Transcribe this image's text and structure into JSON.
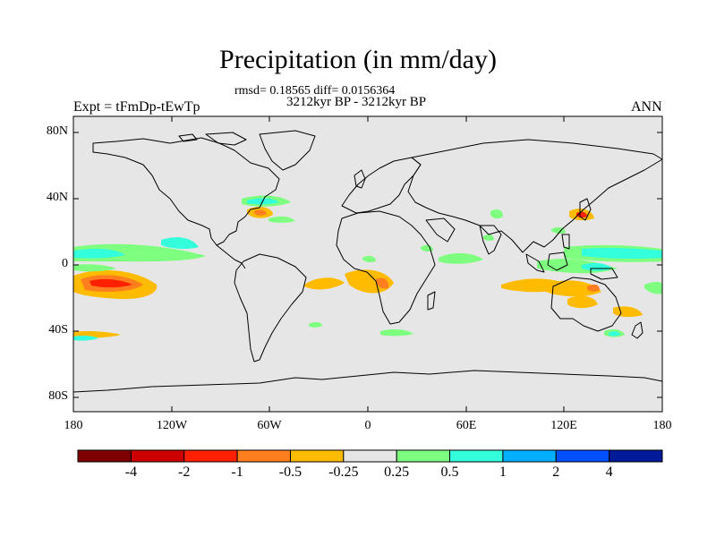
{
  "title": "Precipitation (in mm/day)",
  "stats_line": "rmsd= 0.18565 diff= 0.0156364",
  "period_line": "3212kyr BP - 3212kyr BP",
  "experiment_label": "Expt = tFmDp-tEwTp",
  "season_label": "ANN",
  "colors": {
    "background": "#e6e6e6",
    "coastline": "#000000",
    "scale": [
      "#7f0000",
      "#cc0000",
      "#ff2000",
      "#ff7f1e",
      "#ffbb00",
      "#e6e6e6",
      "#7fff7f",
      "#33ffdd",
      "#00b0ff",
      "#0050ff",
      "#001a99"
    ]
  },
  "axes": {
    "lat_ticks": [
      "80N",
      "40N",
      "0",
      "40S",
      "80S"
    ],
    "lon_ticks": [
      "180",
      "120W",
      "60W",
      "0",
      "60E",
      "120E",
      "180"
    ]
  },
  "colorbar": {
    "labels": [
      "-4",
      "-2",
      "-1",
      "-0.5",
      "-0.25",
      "0.25",
      "0.5",
      "1",
      "2",
      "4"
    ]
  }
}
